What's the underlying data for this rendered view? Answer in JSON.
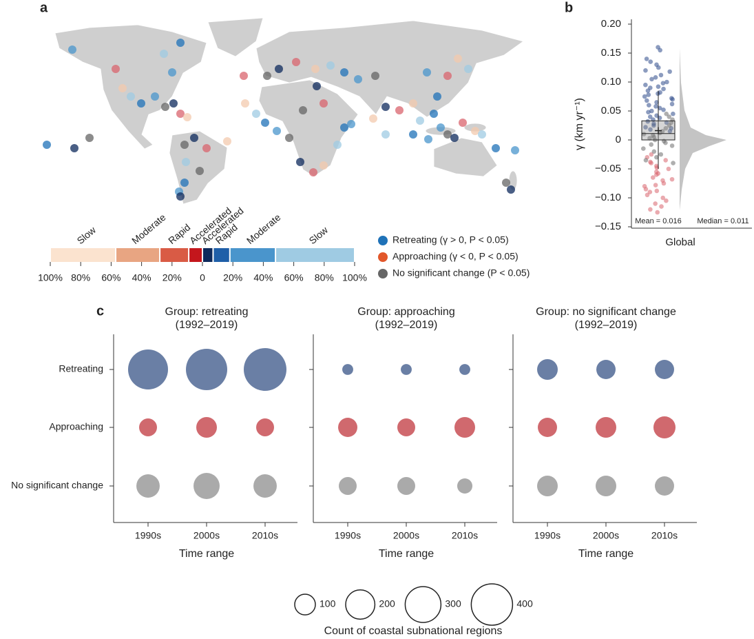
{
  "chart_data": [
    {
      "type": "map",
      "panel": "a",
      "series": [
        {
          "name": "Retreating (γ > 0, P < 0.05)",
          "color": "#1f72b8"
        },
        {
          "name": "Approaching (γ < 0, P < 0.05)",
          "color": "#e2572a"
        },
        {
          "name": "No significant change (P < 0.05)",
          "color": "#666666"
        }
      ],
      "colorbar": {
        "xlim": [
          -100,
          100
        ],
        "xticks": [
          {
            "value": -100,
            "label": "100%"
          },
          {
            "value": -80,
            "label": "80%"
          },
          {
            "value": -60,
            "label": "60%"
          },
          {
            "value": -40,
            "label": "40%"
          },
          {
            "value": -20,
            "label": "20%"
          },
          0,
          {
            "value": 20,
            "label": "20%"
          },
          {
            "value": 40,
            "label": "40%"
          },
          {
            "value": 60,
            "label": "60%"
          },
          {
            "value": 80,
            "label": "80%"
          },
          {
            "value": 100,
            "label": "100%"
          }
        ],
        "segments": [
          {
            "name": "Slow",
            "color": "#fbe3cf",
            "range": [
              -100,
              -57
            ]
          },
          {
            "name": "Moderate",
            "color": "#e8a582",
            "range": [
              -57,
              -28
            ]
          },
          {
            "name": "Rapid",
            "color": "#d95b45",
            "range": [
              -28,
              -9
            ]
          },
          {
            "name": "Accelerated",
            "color": "#c4161c",
            "range": [
              -9,
              0
            ]
          },
          {
            "name": "Accelerated",
            "color": "#0e2a5c",
            "range": [
              0,
              7
            ]
          },
          {
            "name": "Rapid",
            "color": "#1f5fa8",
            "range": [
              7,
              18
            ]
          },
          {
            "name": "Moderate",
            "color": "#4a95cc",
            "range": [
              18,
              48
            ]
          },
          {
            "name": "Slow",
            "color": "#9fcbe3",
            "range": [
              48,
              100
            ]
          }
        ]
      }
    },
    {
      "type": "box",
      "panel": "b",
      "ylabel": "γ (km yr⁻¹)",
      "category": "Global",
      "ylim": [
        -0.15,
        0.2
      ],
      "yticks": [
        {
          "value": 0.2,
          "label": "0.20"
        },
        0.15,
        {
          "value": 0.1,
          "label": "0.10"
        },
        0.05,
        0,
        {
          "value": -0.05,
          "label": "−0.05"
        },
        {
          "value": -0.1,
          "label": "−0.10"
        },
        {
          "value": -0.15,
          "label": "−0.15"
        }
      ],
      "box": {
        "whislo": -0.05,
        "q1": 0,
        "median": 0.011,
        "mean": 0.016,
        "q3": 0.033,
        "whishi": 0.085
      },
      "annotations": [
        "Mean = 0.016",
        "Median = 0.011"
      ],
      "series": [
        {
          "color": "#2d4a8a",
          "values": [
            0.16,
            0.155,
            0.14,
            0.135,
            0.13,
            0.125,
            0.12,
            0.118,
            0.112,
            0.108,
            0.105,
            0.1,
            0.098,
            0.095,
            0.092,
            0.09,
            0.088,
            0.085,
            0.082,
            0.08,
            0.078,
            0.075,
            0.072,
            0.07,
            0.068,
            0.065,
            0.062,
            0.06,
            0.058,
            0.055,
            0.052,
            0.05,
            0.048,
            0.045,
            0.042,
            0.04,
            0.038,
            0.035,
            0.032,
            0.03,
            0.028,
            0.025,
            0.022,
            0.02,
            0.018,
            0.015
          ]
        },
        {
          "color": "#d9646e",
          "values": [
            -0.125,
            -0.12,
            -0.115,
            -0.11,
            -0.105,
            -0.1,
            -0.095,
            -0.09,
            -0.088,
            -0.085,
            -0.08,
            -0.078,
            -0.075,
            -0.07,
            -0.068,
            -0.065,
            -0.06,
            -0.058,
            -0.055,
            -0.05,
            -0.048,
            -0.045,
            -0.04,
            -0.038,
            -0.035,
            -0.03,
            -0.025
          ]
        },
        {
          "color": "#6e6e6e",
          "values": [
            0.045,
            0.04,
            0.035,
            0.03,
            0.025,
            0.02,
            0.015,
            0.012,
            0.01,
            0.008,
            0.005,
            0.003,
            0,
            -0.002,
            -0.005,
            -0.008,
            -0.01,
            -0.015,
            -0.02,
            -0.025,
            -0.03,
            -0.035,
            -0.04
          ]
        }
      ]
    },
    {
      "type": "bubble",
      "panel": "c",
      "title": "Group: retreating",
      "subtitle": "(1992–2019)",
      "xlabel": "Time range",
      "categories": [
        "1990s",
        "2000s",
        "2010s"
      ],
      "rows": [
        "Retreating",
        "Approaching",
        "No significant change"
      ],
      "series": [
        {
          "color": "#6a7fa5",
          "values": [
            374,
            400,
            427
          ]
        },
        {
          "color": "#d0696e",
          "values": [
            75,
            100,
            75
          ]
        },
        {
          "color": "#aaaaaa",
          "values": [
            128,
            160,
            128
          ]
        }
      ]
    },
    {
      "type": "bubble",
      "title": "Group: approaching",
      "subtitle": "(1992–2019)",
      "xlabel": "Time range",
      "categories": [
        "1990s",
        "2000s",
        "2010s"
      ],
      "series": [
        {
          "color": "#6a7fa5",
          "values": [
            28,
            28,
            28
          ]
        },
        {
          "color": "#d0696e",
          "values": [
            87,
            75,
            100
          ]
        },
        {
          "color": "#aaaaaa",
          "values": [
            75,
            75,
            54
          ]
        }
      ]
    },
    {
      "type": "bubble",
      "title": "Group: no significant change",
      "subtitle": "(1992–2019)",
      "xlabel": "Time range",
      "categories": [
        "1990s",
        "2000s",
        "2010s"
      ],
      "series": [
        {
          "color": "#6a7fa5",
          "values": [
            100,
            87,
            87
          ]
        },
        {
          "color": "#d0696e",
          "values": [
            87,
            100,
            114
          ]
        },
        {
          "color": "#aaaaaa",
          "values": [
            100,
            100,
            87
          ]
        }
      ]
    },
    {
      "type": "size_legend",
      "title": "Count of coastal subnational regions",
      "values": [
        100,
        200,
        300,
        400
      ]
    }
  ]
}
